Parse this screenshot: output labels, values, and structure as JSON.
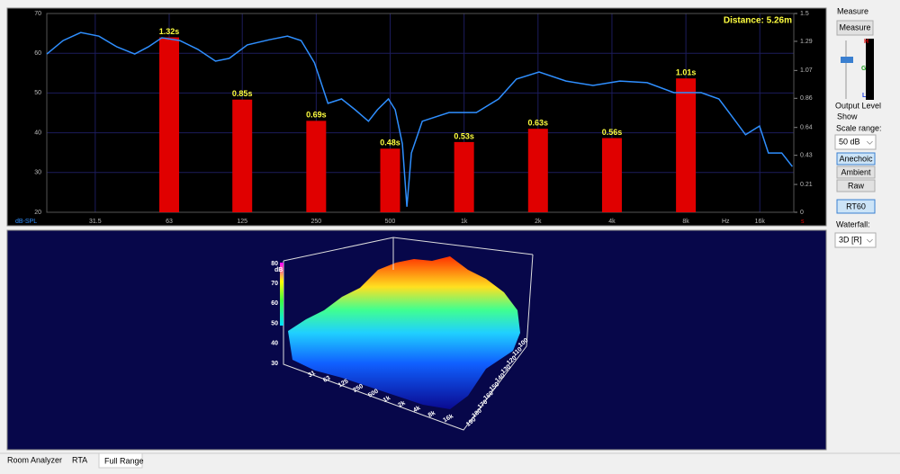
{
  "chart_data": {
    "type": "bar",
    "annotation": "Distance: 5.26m",
    "ylabel": "dB-SPL",
    "y2label": "s",
    "x_unit": "Hz",
    "x_scale": "log",
    "xlim": [
      20,
      22000
    ],
    "xticks": [
      31.5,
      63,
      125,
      250,
      500,
      {
        "value": 1000,
        "label": "1k"
      },
      {
        "value": 2000,
        "label": "2k"
      },
      {
        "value": 4000,
        "label": "4k"
      },
      {
        "value": 8000,
        "label": "8k"
      },
      {
        "value": 16000,
        "label": "16k"
      }
    ],
    "ylim": [
      20,
      70
    ],
    "yticks": [
      20,
      30,
      40,
      50,
      60,
      70
    ],
    "y2lim": [
      0,
      1.5
    ],
    "y2ticks": [
      0,
      0.21,
      0.43,
      0.64,
      0.86,
      1.07,
      1.29,
      1.5
    ],
    "grid": true,
    "grid_color": "#1c1c5c",
    "series": [
      {
        "type": "bar",
        "axis": "y2",
        "color": "#e00000",
        "label_color": "#ffff40",
        "x": [
          63,
          125,
          250,
          500,
          1000,
          2000,
          4000,
          8000
        ],
        "values": [
          1.32,
          0.85,
          0.69,
          0.48,
          0.53,
          0.63,
          0.56,
          1.01
        ],
        "value_labels": [
          "1.32s",
          "0.85s",
          "0.69s",
          "0.48s",
          "0.53s",
          "0.63s",
          "0.56s",
          "1.01s"
        ]
      },
      {
        "type": "line",
        "color": "#2f8fff",
        "x": [
          20,
          23.3,
          27.5,
          32.6,
          38.6,
          45.6,
          51.8,
          58.8,
          69.6,
          82.3,
          97.3,
          110.6,
          131,
          161,
          191,
          217,
          246,
          279,
          317,
          360,
          408,
          444,
          492,
          524,
          561,
          585,
          610,
          676,
          868,
          1122,
          1382,
          1633,
          2020,
          2600,
          3350,
          4310,
          5560,
          7150,
          9230,
          10900,
          12360,
          14000,
          15950,
          17340,
          19650,
          21700
        ],
        "values": [
          59.8,
          63.2,
          65.2,
          64.3,
          61.6,
          59.8,
          61.6,
          63.9,
          63.2,
          61.0,
          58.0,
          58.7,
          62.1,
          63.4,
          64.3,
          63.2,
          57.6,
          47.4,
          48.5,
          45.8,
          42.9,
          45.8,
          48.5,
          45.8,
          37.2,
          21.4,
          34.9,
          42.9,
          45.1,
          45.1,
          48.5,
          53.5,
          55.3,
          53.0,
          51.9,
          53.0,
          52.6,
          50.1,
          50.1,
          48.5,
          44.0,
          39.5,
          41.7,
          34.9,
          34.9,
          31.5
        ]
      }
    ]
  },
  "waterfall": {
    "z_label": "dB",
    "z_ticks": [
      "80",
      "70",
      "60",
      "50",
      "40",
      "30"
    ],
    "freq_labels": [
      "31",
      "63",
      "125",
      "250",
      "500",
      "1k",
      "2k",
      "4k",
      "8k",
      "16k"
    ],
    "time_labels": [
      "100",
      "110",
      "120",
      "130",
      "140",
      "150",
      "160",
      "170",
      "180",
      "190"
    ]
  },
  "controls": {
    "measure_group": "Measure",
    "measure_button": "Measure",
    "meter_h": "H",
    "meter_g": "G",
    "meter_l": "L",
    "output_level": "Output Level",
    "show_group": "Show",
    "scale_range_label": "Scale range:",
    "scale_range_value": "50 dB",
    "anechoic": "Anechoic",
    "ambient": "Ambient",
    "raw": "Raw",
    "rt60": "RT60",
    "waterfall_label": "Waterfall:",
    "waterfall_value": "3D [R]"
  },
  "tabs": [
    "Room Analyzer",
    "RTA",
    "Full Range"
  ]
}
